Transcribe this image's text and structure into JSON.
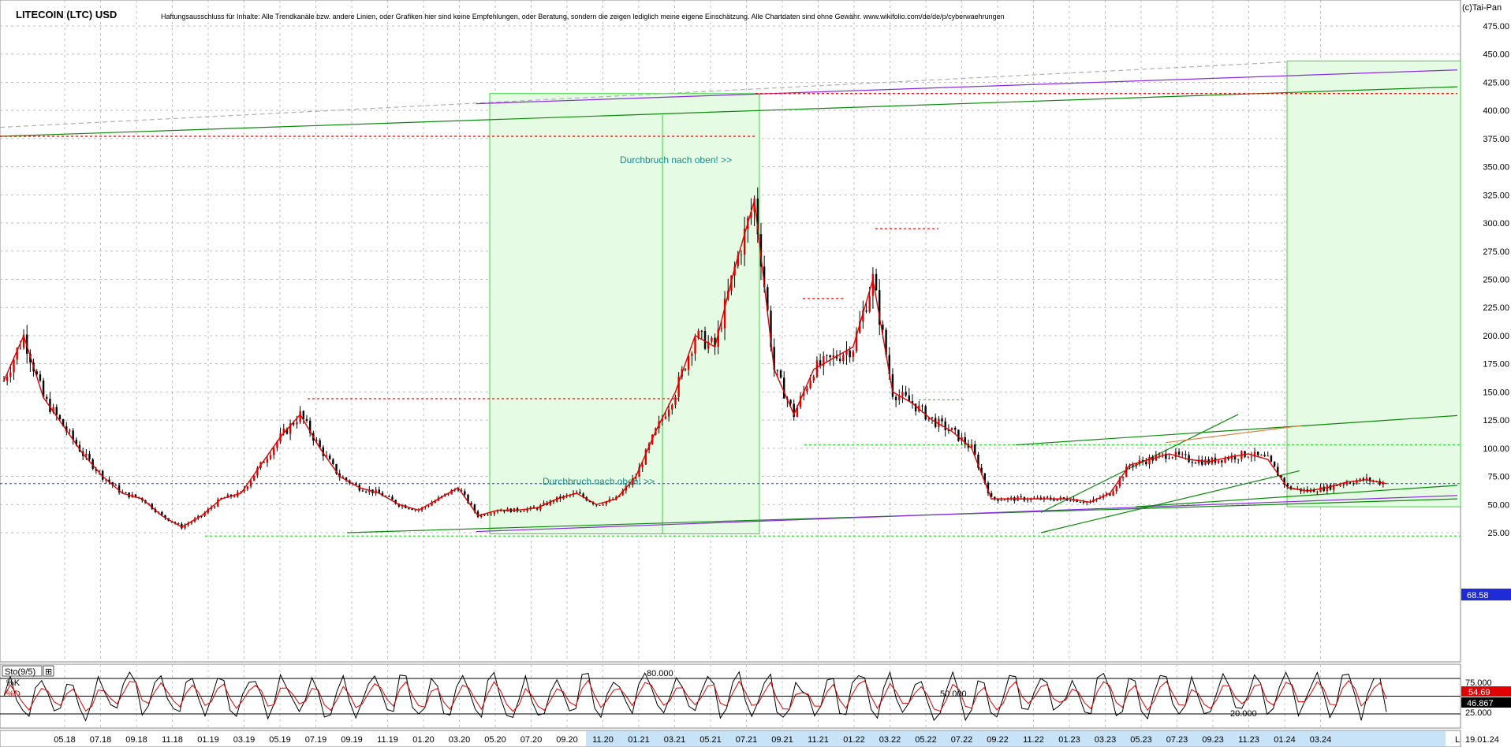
{
  "header": {
    "title": "LITECOIN (LTC) USD",
    "disclaimer": "Haftungsausschluss für Inhalte: Alle Trendkanäle bzw. andere Linien, oder Grafiken hier sind keine Empfehlungen, oder Beratung, sondern die zeigen lediglich meine eigene Einschätzung. Alle Chartdaten sind ohne Gewähr.  www.wikifolio.com/de/de/p/cyberwaehrungen",
    "copyright": "(c)Tai-Pan"
  },
  "annotations": {
    "breakout_upper": "Durchbruch nach oben! >>",
    "breakout_lower": "Durchbruch nach oben! >>"
  },
  "colors": {
    "candle": "#e00000",
    "candle_alt": "#000000",
    "trend_green": "#0a8a0a",
    "trend_purple": "#8a2be2",
    "box_fill": "#e6fbe3",
    "box_stroke": "#39d639",
    "last_price_bg": "#1e2bd6",
    "last_price_line": "#2b3bd6",
    "date_highlight": "#c8e3f7"
  },
  "chart_data": [
    {
      "type": "line",
      "name": "price",
      "ylim": [
        25,
        475
      ],
      "ytick_labels": [
        "475.00",
        "450.00",
        "425.00",
        "400.00",
        "375.00",
        "350.00",
        "325.00",
        "300.00",
        "275.00",
        "250.00",
        "225.00",
        "200.00",
        "175.00",
        "150.00",
        "125.00",
        "100.00",
        "75.00",
        "50.00",
        "25.00"
      ],
      "yticks": [
        475,
        450,
        425,
        400,
        375,
        350,
        325,
        300,
        275,
        250,
        225,
        200,
        175,
        150,
        125,
        100,
        75,
        50,
        25
      ],
      "x_labels": [
        "05.18",
        "07.18",
        "09.18",
        "11.18",
        "01.19",
        "03.19",
        "05.19",
        "07.19",
        "09.19",
        "11.19",
        "01.20",
        "03.20",
        "05.20",
        "07.20",
        "09.20",
        "11.20",
        "01.21",
        "03.21",
        "05.21",
        "07.21",
        "09.21",
        "11.21",
        "01.22",
        "03.22",
        "05.22",
        "07.22",
        "09.22",
        "11.22",
        "01.23",
        "03.23",
        "05.23",
        "07.23",
        "09.23",
        "11.23",
        "01.24",
        "03.24"
      ],
      "x": [
        "03.18",
        "04.18",
        "05.18",
        "06.18",
        "07.18",
        "08.18",
        "09.18",
        "10.18",
        "11.18",
        "12.18",
        "01.19",
        "02.19",
        "03.19",
        "04.19",
        "05.19",
        "06.19",
        "07.19",
        "08.19",
        "09.19",
        "10.19",
        "11.19",
        "12.19",
        "01.20",
        "02.20",
        "03.20",
        "04.20",
        "05.20",
        "06.20",
        "07.20",
        "08.20",
        "09.20",
        "10.20",
        "11.20",
        "12.20",
        "01.21",
        "02.21",
        "03.21",
        "04.21",
        "05.21",
        "06.21",
        "07.21",
        "08.21",
        "09.21",
        "10.21",
        "11.21",
        "12.21",
        "01.22",
        "02.22",
        "03.22",
        "04.22",
        "05.22",
        "06.22",
        "07.22",
        "08.22",
        "09.22",
        "10.22",
        "11.22",
        "12.22",
        "01.23",
        "02.23",
        "03.23",
        "04.23",
        "05.23",
        "06.23",
        "07.23",
        "08.23",
        "09.23",
        "10.23",
        "11.23",
        "12.23",
        "01.24"
      ],
      "values": [
        160,
        200,
        145,
        120,
        95,
        75,
        60,
        55,
        40,
        30,
        40,
        55,
        60,
        85,
        110,
        130,
        100,
        75,
        65,
        60,
        50,
        45,
        55,
        65,
        40,
        45,
        45,
        47,
        55,
        60,
        50,
        55,
        75,
        115,
        150,
        200,
        190,
        260,
        320,
        170,
        130,
        170,
        180,
        190,
        250,
        150,
        140,
        125,
        115,
        100,
        55,
        55,
        55,
        55,
        55,
        52,
        60,
        85,
        90,
        95,
        90,
        88,
        92,
        95,
        90,
        65,
        62,
        65,
        70,
        72,
        68.58
      ],
      "last_price_label": "68.58",
      "last_value": 68.58
    },
    {
      "type": "line",
      "name": "Sto(9/5)",
      "indicator_label": "Sto(9/5)",
      "k_label": "%K",
      "d_label": "%D",
      "ylim": [
        0,
        100
      ],
      "ytick_labels": [
        "75.000",
        "50.000",
        "25.000"
      ],
      "level_labels": [
        "80.000",
        "50.000",
        "20.000"
      ],
      "k_value_label": "54.69",
      "d_value_label": "46.867",
      "k_last": 54.69,
      "d_last": 46.867
    }
  ],
  "xaxis": {
    "end_label": "19.01.24",
    "corner": "L"
  }
}
